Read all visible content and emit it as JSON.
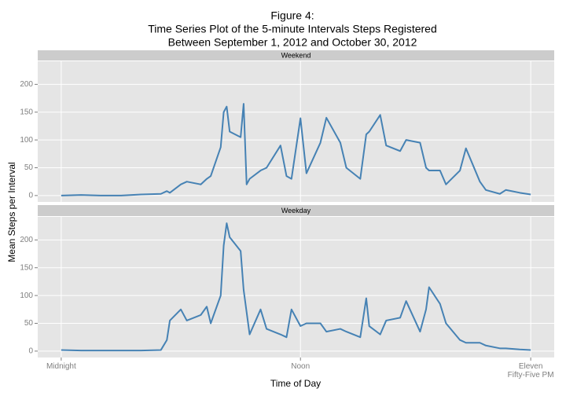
{
  "chart_data": {
    "type": "line",
    "title": [
      "Figure 4:",
      "Time Series Plot of the 5-minute Intervals Steps Registered",
      "Between September 1, 2012 and October 30, 2012"
    ],
    "x_label": "Time of Day",
    "y_label": "Mean Steps per Interval",
    "x": [
      0,
      100,
      200,
      300,
      400,
      500,
      530,
      545,
      600,
      630,
      700,
      730,
      750,
      800,
      815,
      830,
      845,
      900,
      915,
      930,
      945,
      1000,
      1030,
      1100,
      1130,
      1155,
      1200,
      1230,
      1300,
      1330,
      1400,
      1430,
      1500,
      1530,
      1545,
      1600,
      1630,
      1700,
      1730,
      1800,
      1830,
      1845,
      1900,
      1930,
      2000,
      2030,
      2100,
      2130,
      2200,
      2230,
      2300,
      2355
    ],
    "series": [
      {
        "name": "Weekend",
        "color": "#4682b4",
        "values": [
          0,
          1,
          0,
          0,
          2,
          3,
          8,
          5,
          20,
          25,
          20,
          30,
          35,
          87,
          150,
          160,
          115,
          105,
          165,
          20,
          30,
          45,
          50,
          90,
          35,
          30,
          139,
          40,
          95,
          140,
          95,
          50,
          30,
          110,
          115,
          145,
          90,
          80,
          100,
          95,
          50,
          45,
          45,
          20,
          45,
          85,
          25,
          10,
          3,
          10,
          5,
          2
        ]
      },
      {
        "name": "Weekday",
        "color": "#4682b4",
        "values": [
          2,
          1,
          1,
          1,
          1,
          2,
          20,
          55,
          75,
          55,
          65,
          80,
          50,
          100,
          190,
          230,
          205,
          180,
          110,
          70,
          30,
          75,
          40,
          30,
          25,
          75,
          45,
          50,
          50,
          35,
          40,
          35,
          25,
          95,
          45,
          30,
          55,
          60,
          90,
          35,
          75,
          115,
          85,
          50,
          20,
          15,
          15,
          10,
          5,
          5,
          3,
          2
        ]
      }
    ],
    "xlim": [
      -117.75,
      2472.75
    ],
    "xticks": [
      {
        "value": 0,
        "label": "Midnight"
      },
      {
        "value": 1200,
        "label": "Noon"
      },
      {
        "value": 2355,
        "label": "Eleven\nFifty-Five PM"
      }
    ],
    "ylim": [
      -11.5,
      241.5
    ],
    "yticks": [
      0,
      50,
      100,
      150,
      200
    ],
    "grid": true
  }
}
